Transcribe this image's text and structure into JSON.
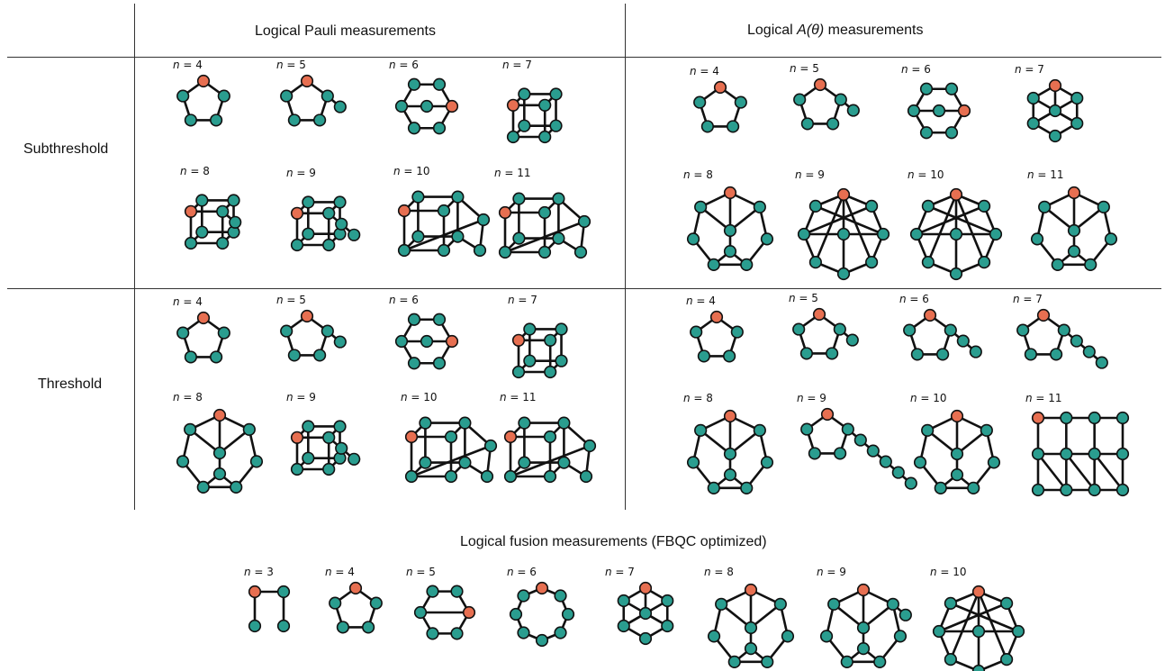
{
  "headers": {
    "pauli": "Logical Pauli measurements",
    "atheta_prefix": "Logical ",
    "atheta_symbol": "A(θ)",
    "atheta_suffix": " measurements",
    "fusion": "Logical fusion measurements (FBQC optimized)"
  },
  "rows": {
    "subthreshold": "Subthreshold",
    "threshold": "Threshold"
  },
  "colors": {
    "qubit": "#2a9d8f",
    "output": "#e76f51",
    "edge": "#111111"
  },
  "graphs": [
    {
      "label": "n = 4",
      "n": 4,
      "shape": "pentagon",
      "tail": 0
    },
    {
      "label": "n = 5",
      "n": 5,
      "shape": "pentagon",
      "tail": 1
    },
    {
      "label": "n = 6",
      "n": 6,
      "shape": "hexmid",
      "tail": 0
    },
    {
      "label": "n = 7",
      "n": 7,
      "shape": "cube",
      "tail": 0
    },
    {
      "label": "n = 8",
      "n": 8,
      "shape": "cube",
      "tail": 1
    },
    {
      "label": "n = 9",
      "n": 9,
      "shape": "cube",
      "tail": 2
    },
    {
      "label": "n = 10",
      "n": 10,
      "shape": "cubeplus",
      "tail": 0
    },
    {
      "label": "n = 11",
      "n": 11,
      "shape": "cubeplus",
      "tail": 0
    },
    {
      "label": "n = 4",
      "n": 4,
      "shape": "pentagon",
      "tail": 0
    },
    {
      "label": "n = 5",
      "n": 5,
      "shape": "pentagon",
      "tail": 1
    },
    {
      "label": "n = 6",
      "n": 6,
      "shape": "hexmid",
      "tail": 0
    },
    {
      "label": "n = 7",
      "n": 7,
      "shape": "hexstar",
      "tail": 0
    },
    {
      "label": "n = 8",
      "n": 8,
      "shape": "ringstar",
      "tail": 0
    },
    {
      "label": "n = 9",
      "n": 9,
      "shape": "dense",
      "tail": 0
    },
    {
      "label": "n = 10",
      "n": 10,
      "shape": "dense",
      "tail": 0
    },
    {
      "label": "n = 11",
      "n": 11,
      "shape": "ringstar",
      "tail": 0
    },
    {
      "label": "n = 4",
      "n": 4,
      "shape": "pentagon",
      "tail": 0
    },
    {
      "label": "n = 5",
      "n": 5,
      "shape": "pentagon",
      "tail": 1
    },
    {
      "label": "n = 6",
      "n": 6,
      "shape": "hexmid",
      "tail": 0
    },
    {
      "label": "n = 7",
      "n": 7,
      "shape": "cube",
      "tail": 0
    },
    {
      "label": "n = 8",
      "n": 8,
      "shape": "ringstar",
      "tail": 0
    },
    {
      "label": "n = 9",
      "n": 9,
      "shape": "cube",
      "tail": 2
    },
    {
      "label": "n = 10",
      "n": 10,
      "shape": "cubeplus",
      "tail": 0
    },
    {
      "label": "n = 11",
      "n": 11,
      "shape": "cubeplus",
      "tail": 0
    },
    {
      "label": "n = 4",
      "n": 4,
      "shape": "pentagon",
      "tail": 0
    },
    {
      "label": "n = 5",
      "n": 5,
      "shape": "pentagon",
      "tail": 1
    },
    {
      "label": "n = 6",
      "n": 6,
      "shape": "pentagon",
      "tail": 2
    },
    {
      "label": "n = 7",
      "n": 7,
      "shape": "pentagon",
      "tail": 3
    },
    {
      "label": "n = 8",
      "n": 8,
      "shape": "ringstar",
      "tail": 0
    },
    {
      "label": "n = 9",
      "n": 9,
      "shape": "pentagon",
      "tail": 5
    },
    {
      "label": "n = 10",
      "n": 10,
      "shape": "ringstar",
      "tail": 0
    },
    {
      "label": "n = 11",
      "n": 11,
      "shape": "grid",
      "tail": 0
    },
    {
      "label": "n = 3",
      "n": 3,
      "shape": "staple",
      "tail": 0
    },
    {
      "label": "n = 4",
      "n": 4,
      "shape": "pentagon",
      "tail": 0
    },
    {
      "label": "n = 5",
      "n": 5,
      "shape": "hexchord",
      "tail": 0
    },
    {
      "label": "n = 6",
      "n": 6,
      "shape": "ring",
      "tail": 0
    },
    {
      "label": "n = 7",
      "n": 7,
      "shape": "hexstar",
      "tail": 0
    },
    {
      "label": "n = 8",
      "n": 8,
      "shape": "ringstar",
      "tail": 0
    },
    {
      "label": "n = 9",
      "n": 9,
      "shape": "ringstar",
      "tail": 1
    },
    {
      "label": "n = 10",
      "n": 10,
      "shape": "dense",
      "tail": 0
    }
  ]
}
